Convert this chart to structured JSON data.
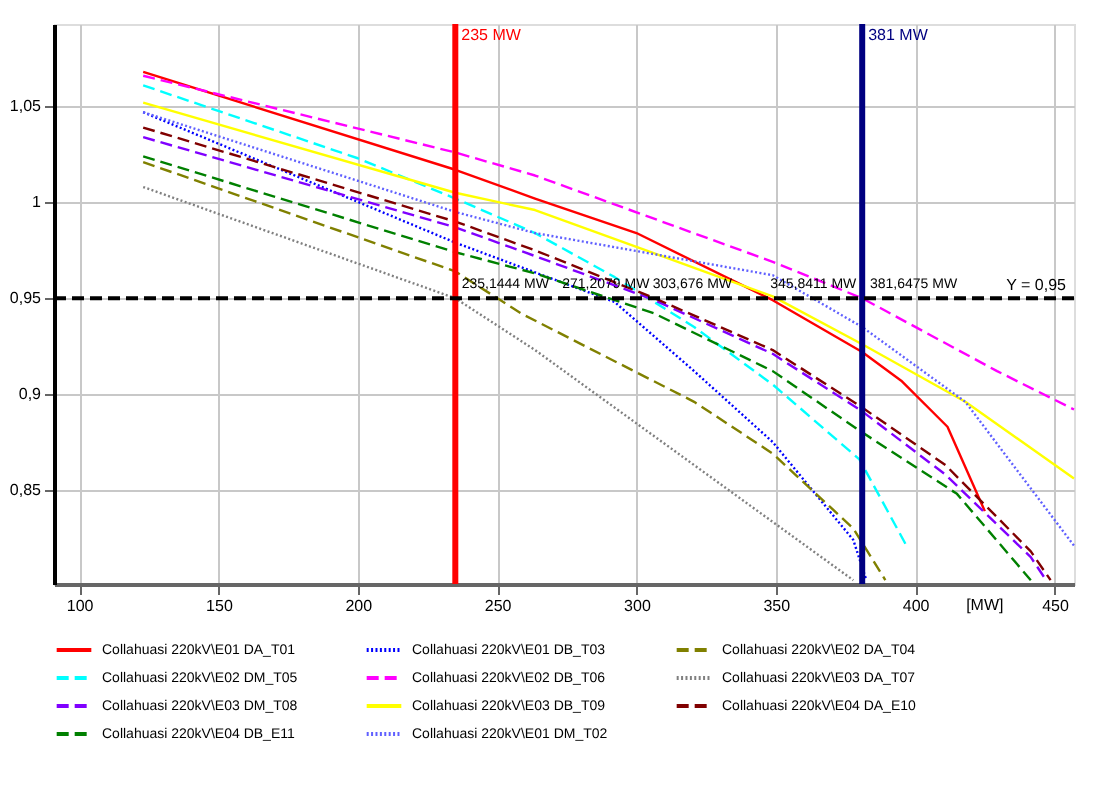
{
  "chart_data": {
    "type": "line",
    "xlabel": "[MW]",
    "xlim": [
      91,
      457
    ],
    "ylim": [
      0.801,
      1.093
    ],
    "xticks": [
      100,
      150,
      200,
      250,
      300,
      350,
      400,
      450
    ],
    "yticks": [
      {
        "value": 0.85,
        "label": "0,85"
      },
      {
        "value": 0.9,
        "label": "0,9"
      },
      {
        "value": 0.95,
        "label": "0,95"
      },
      {
        "value": 1,
        "label": "1"
      },
      {
        "value": 1.05,
        "label": "1,05"
      }
    ],
    "grid": true,
    "legend": "bottom",
    "marker": "none",
    "series": [
      {
        "name": "Collahuasi 220kV\\E01 DA_T01",
        "color": "#ff0000",
        "line_style": "solid",
        "x": [
          123,
          235,
          263.6,
          300,
          348.9,
          381,
          395,
          411.6,
          425
        ],
        "values": [
          1.068,
          1.017,
          1.002,
          0.984,
          0.949,
          0.922,
          0.907,
          0.883,
          0.839
        ]
      },
      {
        "name": "Collahuasi 220kV\\E01 DB_T03",
        "color": "#0000ff",
        "line_style": "dotted",
        "x": [
          123,
          235,
          292.2,
          320.7,
          348.9,
          377.8,
          382.5
        ],
        "values": [
          1.047,
          0.979,
          0.948,
          0.912,
          0.875,
          0.824,
          0.803
        ]
      },
      {
        "name": "Collahuasi 220kV\\E02 DA_T04",
        "color": "#808000",
        "line_style": "dashed",
        "x": [
          123,
          235,
          258.7,
          320.7,
          348.9,
          377.8,
          389.3
        ],
        "values": [
          1.021,
          0.964,
          0.942,
          0.896,
          0.869,
          0.83,
          0.803
        ]
      },
      {
        "name": "Collahuasi 220kV\\E02 DM_T05",
        "color": "#00ffff",
        "line_style": "dashed",
        "x": [
          123,
          200,
          235,
          263.6,
          292.2,
          320.7,
          348.9,
          380,
          396.5
        ],
        "values": [
          1.061,
          1.023,
          1.002,
          0.984,
          0.961,
          0.935,
          0.905,
          0.866,
          0.822
        ]
      },
      {
        "name": "Collahuasi 220kV\\E02 DB_T06",
        "color": "#ff00ff",
        "line_style": "dashed",
        "x": [
          123,
          235,
          263.6,
          348.9,
          381,
          429.4,
          457
        ],
        "values": [
          1.066,
          1.026,
          1.014,
          0.969,
          0.95,
          0.912,
          0.892
        ]
      },
      {
        "name": "Collahuasi 220kV\\E03 DA_T07",
        "color": "#808080",
        "line_style": "dotted",
        "x": [
          123,
          235,
          263.6,
          320.7,
          377.8
        ],
        "values": [
          1.008,
          0.95,
          0.923,
          0.863,
          0.803
        ]
      },
      {
        "name": "Collahuasi 220kV\\E03 DM_T08",
        "color": "#8000ff",
        "line_style": "dashed",
        "x": [
          123,
          235,
          263.6,
          306.5,
          348.9,
          381,
          410.9,
          441.5,
          447
        ],
        "values": [
          1.034,
          0.987,
          0.972,
          0.949,
          0.921,
          0.891,
          0.858,
          0.815,
          0.803
        ]
      },
      {
        "name": "Collahuasi 220kV\\E03 DB_T09",
        "color": "#ffff00",
        "line_style": "solid",
        "x": [
          123,
          235,
          263.6,
          348.9,
          381,
          418,
          457
        ],
        "values": [
          1.052,
          1.005,
          0.996,
          0.951,
          0.926,
          0.896,
          0.856
        ]
      },
      {
        "name": "Collahuasi 220kV\\E04 DA_E10",
        "color": "#800000",
        "line_style": "dashed",
        "x": [
          123,
          235,
          263.6,
          306.5,
          348.9,
          381,
          410.9,
          441.5,
          448.6
        ],
        "values": [
          1.039,
          0.99,
          0.975,
          0.95,
          0.923,
          0.893,
          0.863,
          0.818,
          0.803
        ]
      },
      {
        "name": "Collahuasi 220kV\\E04 DB_E11",
        "color": "#008000",
        "line_style": "dashed",
        "x": [
          123,
          235,
          263.6,
          306.5,
          348.9,
          380,
          415,
          441.5
        ],
        "values": [
          1.024,
          0.974,
          0.963,
          0.942,
          0.912,
          0.881,
          0.848,
          0.803
        ]
      },
      {
        "name": "Collahuasi 220kV\\E01 DM_T02",
        "color": "#6060ff",
        "line_style": "dotted",
        "x": [
          123,
          235,
          263.6,
          348.9,
          381,
          418,
          457
        ],
        "values": [
          1.047,
          0.995,
          0.984,
          0.962,
          0.935,
          0.896,
          0.821
        ]
      }
    ],
    "ref_lines": [
      {
        "axis": "x",
        "value": 235,
        "label": "235 MW",
        "color": "#ff0000",
        "line_style": "solid"
      },
      {
        "axis": "x",
        "value": 381,
        "label": "381 MW",
        "color": "#000080",
        "line_style": "solid"
      },
      {
        "axis": "y",
        "value": 0.95,
        "label": "Y = 0,95",
        "color": "#000000",
        "line_style": "dashed"
      }
    ],
    "annotations": [
      {
        "text": "235,1444 MW",
        "x": 235.1444,
        "y": 0.95
      },
      {
        "text": "271,2079 MW",
        "x": 271.2079,
        "y": 0.95
      },
      {
        "text": "303,676 MW",
        "x": 303.676,
        "y": 0.95
      },
      {
        "text": "345,8411 MW",
        "x": 345.8411,
        "y": 0.95
      },
      {
        "text": "381,6475 MW",
        "x": 381.6475,
        "y": 0.95
      }
    ]
  }
}
